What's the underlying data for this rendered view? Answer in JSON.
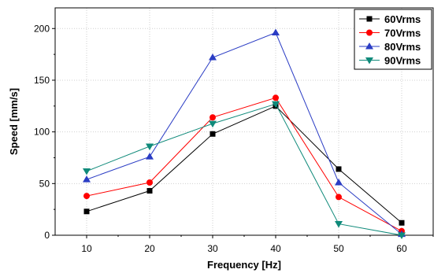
{
  "chart_data": {
    "type": "line",
    "xlabel": "Frequency [Hz]",
    "ylabel": "Speed [mm/s]",
    "x": [
      10,
      20,
      30,
      40,
      50,
      60
    ],
    "xlim": [
      5,
      65
    ],
    "ylim": [
      0,
      220
    ],
    "xticks": [
      "10",
      "20",
      "30",
      "40",
      "50",
      "60"
    ],
    "yticks": [
      "0",
      "50",
      "100",
      "150",
      "200"
    ],
    "grid": true,
    "legend_position": "top-right",
    "series": [
      {
        "name": "60Vrms",
        "color": "#000000",
        "marker": "square",
        "values": [
          23,
          43,
          98,
          125,
          64,
          12
        ]
      },
      {
        "name": "70Vrms",
        "color": "#ff0000",
        "marker": "circle",
        "values": [
          38,
          51,
          114,
          133,
          37,
          4
        ]
      },
      {
        "name": "80Vrms",
        "color": "#2a3cc4",
        "marker": "triangle-up",
        "values": [
          54,
          76,
          172,
          196,
          51,
          1
        ]
      },
      {
        "name": "90Vrms",
        "color": "#0f8a7a",
        "marker": "triangle-down",
        "values": [
          62,
          86,
          108,
          127,
          11,
          0
        ]
      }
    ]
  }
}
